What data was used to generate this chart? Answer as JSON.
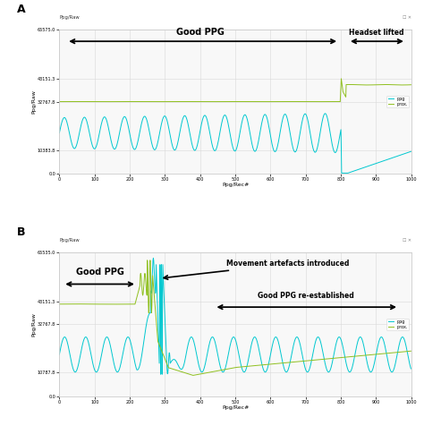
{
  "fig_bg": "#ffffff",
  "panel_bg": "#f8f8f8",
  "panel_border": "#cccccc",
  "ppg_color": "#00c8d0",
  "prox_color": "#90c020",
  "title_A": "A",
  "title_B": "B",
  "xlabel": "Ppg/Rec#",
  "ylabel": "Ppg/Raw",
  "ylim_A": [
    0.0,
    65575.0
  ],
  "yticks_A": [
    0.0,
    10383.8,
    32767.8,
    43151.3,
    65575.0
  ],
  "ytick_labels_A": [
    "0.0",
    "10383.8",
    "32767.8",
    "43151.3",
    "65575.0"
  ],
  "xlim_A": [
    0,
    1000
  ],
  "xticks_A": [
    0,
    100,
    200,
    300,
    400,
    500,
    600,
    700,
    800,
    900,
    1000
  ],
  "ylim_B": [
    0.0,
    65535.0
  ],
  "yticks_B": [
    0.0,
    10787.8,
    32767.8,
    43151.3,
    65535.0
  ],
  "ytick_labels_B": [
    "0.0",
    "10787.8",
    "32767.8",
    "43151.3",
    "65535.0"
  ],
  "xlim_B": [
    0,
    1000
  ],
  "xticks_B": [
    0,
    100,
    200,
    300,
    400,
    500,
    600,
    700,
    800,
    900,
    1000
  ],
  "legend_ppg": "ppg",
  "legend_prox": "prox.",
  "annot_A_good_ppg": "Good PPG",
  "annot_A_headset": "Headset lifted",
  "annot_B_good_ppg": "Good PPG",
  "annot_B_movement": "Movement artefacts introduced",
  "annot_B_reestablished": "Good PPG re-established",
  "header_label": "Ppg/Raw"
}
